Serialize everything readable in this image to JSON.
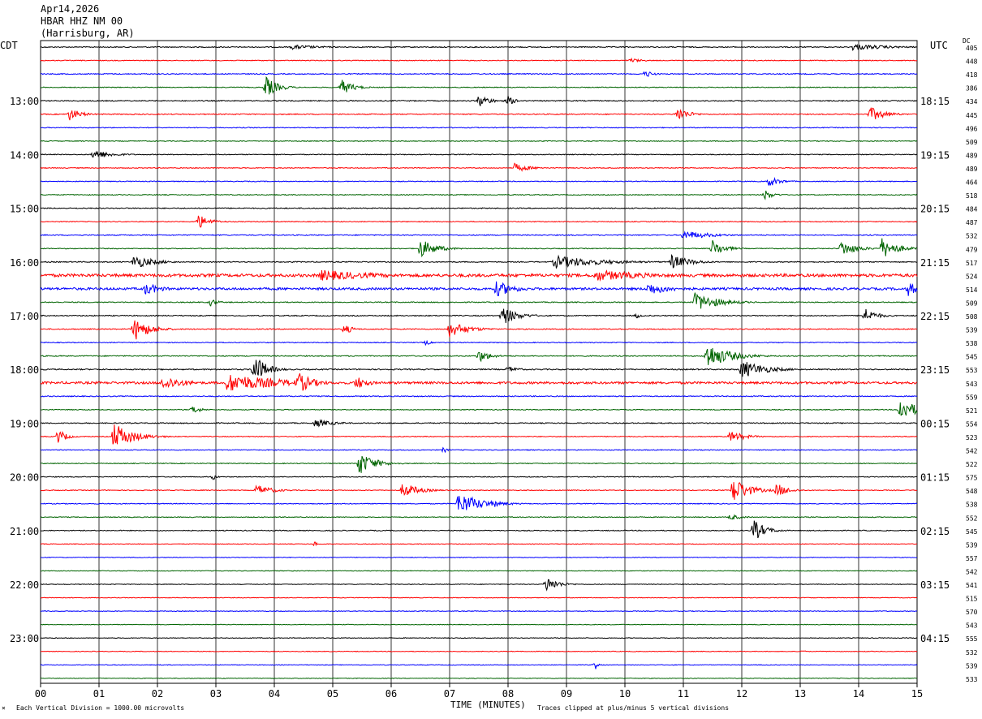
{
  "header": {
    "date": "Apr14,2026",
    "station": "HBAR HHZ NM 00",
    "location": "(Harrisburg, AR)"
  },
  "left_tz": "CDT",
  "right_tz": "UTC",
  "dc_label": "DC",
  "x_title": "TIME (MINUTES)",
  "footer_left": "Each Vertical Division = 1000.00 microvolts",
  "footer_right": "Traces clipped at plus/minus 5 vertical divisions",
  "footer_mark": "⨯",
  "colors": {
    "trace_cycle": [
      "#000000",
      "#ff0000",
      "#0000ff",
      "#006400"
    ],
    "grid": "#000000",
    "text": "#000000"
  },
  "chart_data": {
    "type": "line",
    "description": "helicorder seismogram, 4 traces per hour, 15 minutes per line",
    "x_ticks": [
      "00",
      "01",
      "02",
      "03",
      "04",
      "05",
      "06",
      "07",
      "08",
      "09",
      "10",
      "11",
      "12",
      "13",
      "14",
      "15"
    ],
    "xlim": [
      0,
      15
    ],
    "x_unit": "minutes",
    "cdt_labels": [
      "13:00",
      "14:00",
      "15:00",
      "16:00",
      "17:00",
      "18:00",
      "19:00",
      "20:00",
      "21:00",
      "22:00",
      "23:00"
    ],
    "utc_labels": [
      "18:15",
      "19:15",
      "20:15",
      "21:15",
      "22:15",
      "23:15",
      "00:15",
      "01:15",
      "02:15",
      "03:15",
      "04:15"
    ],
    "label_first_line": 4,
    "label_every": 4,
    "dc_offsets": [
      405,
      448,
      418,
      386,
      434,
      445,
      496,
      509,
      489,
      489,
      464,
      518,
      484,
      487,
      532,
      479,
      517,
      524,
      514,
      509,
      508,
      539,
      538,
      545,
      553,
      543,
      559,
      521,
      554,
      523,
      542,
      522,
      575,
      548,
      538,
      552,
      545,
      539,
      557,
      542,
      541,
      515,
      570,
      543,
      555,
      532,
      539,
      533
    ],
    "noise": [
      0.6,
      0.5,
      0.6,
      0.5,
      0.6,
      0.6,
      0.5,
      0.5,
      0.5,
      0.5,
      0.5,
      0.5,
      0.6,
      0.5,
      0.6,
      0.5,
      0.6,
      1.8,
      1.4,
      0.6,
      0.6,
      0.6,
      0.5,
      0.6,
      0.7,
      1.4,
      0.6,
      0.5,
      0.6,
      0.5,
      0.5,
      0.5,
      0.5,
      0.5,
      0.5,
      0.5,
      0.5,
      0.4,
      0.4,
      0.4,
      0.4,
      0.4,
      0.4,
      0.4,
      0.4,
      0.4,
      0.4,
      0.4
    ],
    "events": [
      {
        "line": 0,
        "t": 4.3,
        "amp": 3,
        "dur": 0.8
      },
      {
        "line": 0,
        "t": 13.9,
        "amp": 4,
        "dur": 1.0
      },
      {
        "line": 1,
        "t": 10.1,
        "amp": 3,
        "dur": 0.3
      },
      {
        "line": 2,
        "t": 10.35,
        "amp": 5,
        "dur": 0.2
      },
      {
        "line": 3,
        "t": 3.85,
        "amp": 14,
        "dur": 0.3
      },
      {
        "line": 3,
        "t": 5.15,
        "amp": 10,
        "dur": 0.3
      },
      {
        "line": 4,
        "t": 7.5,
        "amp": 8,
        "dur": 0.3
      },
      {
        "line": 4,
        "t": 8.0,
        "amp": 6,
        "dur": 0.2
      },
      {
        "line": 5,
        "t": 0.5,
        "amp": 8,
        "dur": 0.3
      },
      {
        "line": 5,
        "t": 10.9,
        "amp": 9,
        "dur": 0.3
      },
      {
        "line": 5,
        "t": 14.2,
        "amp": 9,
        "dur": 0.4
      },
      {
        "line": 8,
        "t": 0.9,
        "amp": 6,
        "dur": 0.5
      },
      {
        "line": 9,
        "t": 8.1,
        "amp": 6,
        "dur": 0.4
      },
      {
        "line": 10,
        "t": 12.45,
        "amp": 7,
        "dur": 0.3
      },
      {
        "line": 11,
        "t": 12.4,
        "amp": 7,
        "dur": 0.2
      },
      {
        "line": 13,
        "t": 2.7,
        "amp": 9,
        "dur": 0.3
      },
      {
        "line": 14,
        "t": 11.0,
        "amp": 6,
        "dur": 0.7
      },
      {
        "line": 15,
        "t": 6.5,
        "amp": 12,
        "dur": 0.4
      },
      {
        "line": 15,
        "t": 11.5,
        "amp": 11,
        "dur": 0.3
      },
      {
        "line": 15,
        "t": 13.7,
        "amp": 10,
        "dur": 0.4
      },
      {
        "line": 15,
        "t": 14.4,
        "amp": 13,
        "dur": 0.4
      },
      {
        "line": 16,
        "t": 1.6,
        "amp": 9,
        "dur": 0.5
      },
      {
        "line": 16,
        "t": 8.8,
        "amp": 8,
        "dur": 1.2
      },
      {
        "line": 16,
        "t": 10.8,
        "amp": 9,
        "dur": 0.5
      },
      {
        "line": 17,
        "t": 4.8,
        "amp": 7,
        "dur": 1.5
      },
      {
        "line": 17,
        "t": 9.5,
        "amp": 7,
        "dur": 1.5
      },
      {
        "line": 18,
        "t": 1.8,
        "amp": 8,
        "dur": 0.4
      },
      {
        "line": 18,
        "t": 7.8,
        "amp": 10,
        "dur": 0.5
      },
      {
        "line": 18,
        "t": 10.4,
        "amp": 8,
        "dur": 0.6
      },
      {
        "line": 18,
        "t": 14.85,
        "amp": 9,
        "dur": 0.3
      },
      {
        "line": 19,
        "t": 11.2,
        "amp": 12,
        "dur": 0.6
      },
      {
        "line": 19,
        "t": 2.9,
        "amp": 5,
        "dur": 0.2
      },
      {
        "line": 20,
        "t": 7.9,
        "amp": 12,
        "dur": 0.4
      },
      {
        "line": 20,
        "t": 14.1,
        "amp": 10,
        "dur": 0.3
      },
      {
        "line": 20,
        "t": 10.2,
        "amp": 4,
        "dur": 0.1
      },
      {
        "line": 21,
        "t": 1.6,
        "amp": 15,
        "dur": 0.4
      },
      {
        "line": 21,
        "t": 5.2,
        "amp": 7,
        "dur": 0.2
      },
      {
        "line": 21,
        "t": 7.0,
        "amp": 10,
        "dur": 0.5
      },
      {
        "line": 22,
        "t": 6.6,
        "amp": 4,
        "dur": 0.1
      },
      {
        "line": 23,
        "t": 7.5,
        "amp": 8,
        "dur": 0.3
      },
      {
        "line": 23,
        "t": 11.4,
        "amp": 16,
        "dur": 0.6
      },
      {
        "line": 24,
        "t": 3.65,
        "amp": 20,
        "dur": 0.3
      },
      {
        "line": 24,
        "t": 12.0,
        "amp": 12,
        "dur": 0.6
      },
      {
        "line": 24,
        "t": 8.0,
        "amp": 4,
        "dur": 0.3
      },
      {
        "line": 25,
        "t": 3.2,
        "amp": 12,
        "dur": 1.4
      },
      {
        "line": 25,
        "t": 4.4,
        "amp": 14,
        "dur": 0.4
      },
      {
        "line": 25,
        "t": 5.4,
        "amp": 9,
        "dur": 0.3
      },
      {
        "line": 25,
        "t": 2.1,
        "amp": 9,
        "dur": 0.6
      },
      {
        "line": 27,
        "t": 2.6,
        "amp": 6,
        "dur": 0.2
      },
      {
        "line": 27,
        "t": 14.7,
        "amp": 14,
        "dur": 0.5
      },
      {
        "line": 28,
        "t": 4.7,
        "amp": 5,
        "dur": 0.5
      },
      {
        "line": 29,
        "t": 0.3,
        "amp": 10,
        "dur": 0.2
      },
      {
        "line": 29,
        "t": 1.25,
        "amp": 17,
        "dur": 0.5
      },
      {
        "line": 29,
        "t": 11.8,
        "amp": 7,
        "dur": 0.4
      },
      {
        "line": 30,
        "t": 6.9,
        "amp": 4,
        "dur": 0.1
      },
      {
        "line": 31,
        "t": 5.45,
        "amp": 15,
        "dur": 0.4
      },
      {
        "line": 32,
        "t": 2.95,
        "amp": 4,
        "dur": 0.1
      },
      {
        "line": 33,
        "t": 3.7,
        "amp": 7,
        "dur": 0.4
      },
      {
        "line": 33,
        "t": 6.2,
        "amp": 10,
        "dur": 0.4
      },
      {
        "line": 33,
        "t": 11.85,
        "amp": 17,
        "dur": 0.4
      },
      {
        "line": 33,
        "t": 12.6,
        "amp": 9,
        "dur": 0.3
      },
      {
        "line": 34,
        "t": 7.15,
        "amp": 14,
        "dur": 0.6
      },
      {
        "line": 34,
        "t": 7.8,
        "amp": 8,
        "dur": 0.05
      },
      {
        "line": 35,
        "t": 11.8,
        "amp": 4,
        "dur": 0.3
      },
      {
        "line": 36,
        "t": 12.2,
        "amp": 14,
        "dur": 0.3
      },
      {
        "line": 37,
        "t": 4.7,
        "amp": 4,
        "dur": 0.05
      },
      {
        "line": 40,
        "t": 8.65,
        "amp": 10,
        "dur": 0.3
      },
      {
        "line": 45,
        "t": 13.05,
        "amp": 3,
        "dur": 0.05
      },
      {
        "line": 46,
        "t": 9.5,
        "amp": 7,
        "dur": 0.05
      }
    ]
  }
}
